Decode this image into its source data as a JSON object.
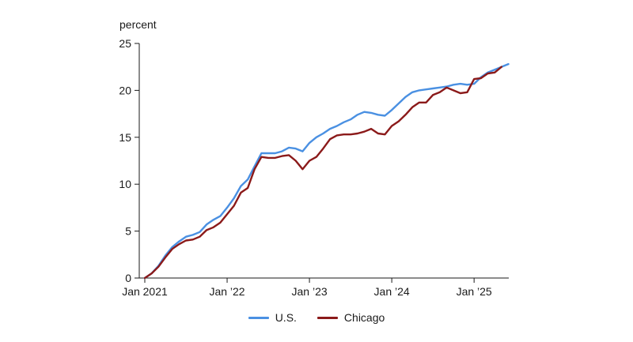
{
  "chart_data": {
    "type": "line",
    "title": "",
    "ylabel": "percent",
    "xlabel": "",
    "ylim": [
      0,
      25
    ],
    "y_ticks": [
      0,
      5,
      10,
      15,
      20,
      25
    ],
    "x_start": "2021-01",
    "x_ticks": [
      {
        "label": "Jan 2021",
        "date": "2021-01"
      },
      {
        "label": "Jan ’22",
        "date": "2022-01"
      },
      {
        "label": "Jan ’23",
        "date": "2023-01"
      },
      {
        "label": "Jan ’24",
        "date": "2024-01"
      },
      {
        "label": "Jan ’25",
        "date": "2025-01"
      }
    ],
    "grid": false,
    "legend_position": "bottom-center",
    "series": [
      {
        "name": "U.S.",
        "color": "#4a90e2",
        "values": [
          0,
          0.5,
          1.3,
          2.4,
          3.3,
          3.9,
          4.4,
          4.6,
          4.9,
          5.7,
          6.2,
          6.6,
          7.5,
          8.5,
          9.8,
          10.5,
          11.9,
          13.3,
          13.3,
          13.3,
          13.5,
          13.9,
          13.8,
          13.5,
          14.4,
          15.0,
          15.4,
          15.9,
          16.2,
          16.6,
          16.9,
          17.4,
          17.7,
          17.6,
          17.4,
          17.3,
          17.9,
          18.6,
          19.3,
          19.8,
          20.0,
          20.1,
          20.2,
          20.3,
          20.4,
          20.6,
          20.7,
          20.6,
          20.7,
          21.4,
          21.9,
          22.2,
          22.5,
          22.8
        ]
      },
      {
        "name": "Chicago",
        "color": "#8b1a1a",
        "values": [
          0,
          0.5,
          1.2,
          2.2,
          3.1,
          3.6,
          4.0,
          4.1,
          4.4,
          5.1,
          5.4,
          5.9,
          6.8,
          7.7,
          9.1,
          9.6,
          11.6,
          12.9,
          12.8,
          12.8,
          13.0,
          13.1,
          12.5,
          11.6,
          12.5,
          12.9,
          13.8,
          14.8,
          15.2,
          15.3,
          15.3,
          15.4,
          15.6,
          15.9,
          15.4,
          15.3,
          16.2,
          16.7,
          17.4,
          18.2,
          18.7,
          18.7,
          19.5,
          19.8,
          20.3,
          20.0,
          19.7,
          19.8,
          21.2,
          21.3,
          21.8,
          21.9,
          22.5
        ]
      }
    ]
  }
}
